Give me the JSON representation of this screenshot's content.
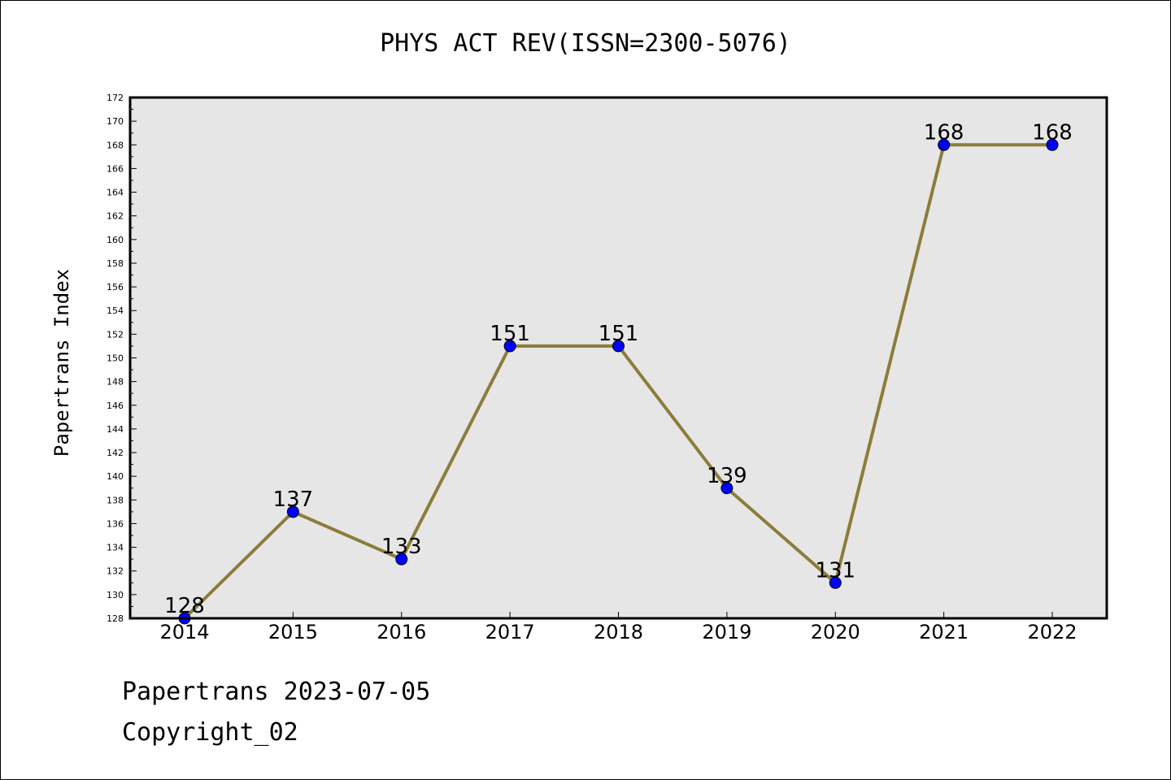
{
  "chart_data": {
    "type": "line",
    "title": "PHYS ACT REV(ISSN=2300-5076)",
    "xlabel": "",
    "ylabel": "Papertrans Index",
    "categories": [
      "2014",
      "2015",
      "2016",
      "2017",
      "2018",
      "2019",
      "2020",
      "2021",
      "2022"
    ],
    "series": [
      {
        "values": [
          128,
          137,
          133,
          151,
          151,
          139,
          131,
          168,
          168
        ]
      }
    ],
    "ylim": [
      128,
      172
    ],
    "yticks": [
      128,
      130,
      132,
      134,
      136,
      138,
      140,
      142,
      144,
      146,
      148,
      150,
      152,
      154,
      156,
      158,
      160,
      162,
      164,
      166,
      168,
      170,
      172
    ],
    "grid": false,
    "legend": "none",
    "colors": {
      "line": "#8b7d3a",
      "marker": "#0000ff",
      "plot_background": "#e6e6e6"
    }
  },
  "footer": {
    "line1": "Papertrans 2023-07-05",
    "line2": "Copyright_02"
  }
}
